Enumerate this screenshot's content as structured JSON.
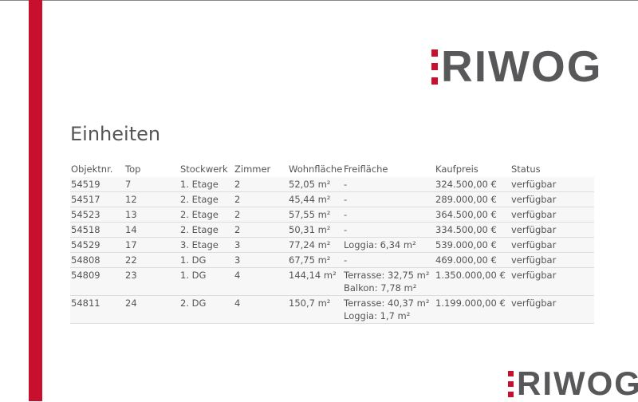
{
  "logo_text": "RIWOG",
  "title": "Einheiten",
  "columns": [
    "Objektnr.",
    "Top",
    "Stockwerk",
    "Zimmer",
    "Wohnfläche",
    "Freifläche",
    "Kaufpreis",
    "Status"
  ],
  "rows": [
    [
      "54519",
      "7",
      "1. Etage",
      "2",
      "52,05 m²",
      "-",
      "324.500,00 €",
      "verfügbar"
    ],
    [
      "54517",
      "12",
      "2. Etage",
      "2",
      "45,44 m²",
      "-",
      "289.000,00 €",
      "verfügbar"
    ],
    [
      "54523",
      "13",
      "2. Etage",
      "2",
      "57,55 m²",
      "-",
      "364.500,00 €",
      "verfügbar"
    ],
    [
      "54518",
      "14",
      "2. Etage",
      "2",
      "50,31 m²",
      "-",
      "334.500,00 €",
      "verfügbar"
    ],
    [
      "54529",
      "17",
      "3. Etage",
      "3",
      "77,24 m²",
      "Loggia: 6,34 m²",
      "539.000,00 €",
      "verfügbar"
    ],
    [
      "54808",
      "22",
      "1. DG",
      "3",
      "67,75 m²",
      "-",
      "469.000,00 €",
      "verfügbar"
    ],
    [
      "54809",
      "23",
      "1. DG",
      "4",
      "144,14 m²",
      "Terrasse: 32,75 m²\nBalkon: 7,78 m²",
      "1.350.000,00 €",
      "verfügbar"
    ],
    [
      "54811",
      "24",
      "2. DG",
      "4",
      "150,7 m²",
      "Terrasse: 40,37 m²\nLoggia: 1,7 m²",
      "1.199.000,00 €",
      "verfügbar"
    ]
  ],
  "colors": {
    "brand_red": "#c8102e",
    "logo_gray": "#58585a"
  }
}
